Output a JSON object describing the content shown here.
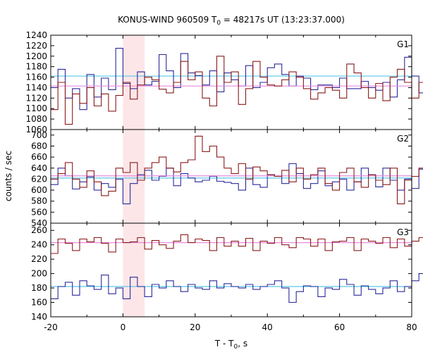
{
  "chart_data": {
    "type": "line",
    "title": "KONUS-WIND 960509 T",
    "title_sub": "0",
    "title_rest": " = 48217s UT (13:23:37.000)",
    "xlabel": "T - T",
    "xlabel_sub": "0",
    "xlabel_rest": ", s",
    "ylabel": "counts / sec",
    "xlim": [
      -20,
      80
    ],
    "xticks": [
      -20,
      0,
      20,
      40,
      60,
      80
    ],
    "highlight_interval": [
      0,
      6
    ],
    "bin_width": 2,
    "panels": [
      {
        "name": "G1",
        "ylim": [
          1060,
          1240
        ],
        "yticks": [
          1060,
          1080,
          1100,
          1120,
          1140,
          1160,
          1180,
          1200,
          1220,
          1240
        ],
        "series": [
          {
            "color": "#2a2a9a",
            "background_level": 1162,
            "background_color": "#5bc8e8",
            "values": [
              1140,
              1175,
              1120,
              1138,
              1098,
              1165,
              1122,
              1158,
              1136,
              1215,
              1148,
              1138,
              1170,
              1145,
              1152,
              1203,
              1172,
              1140,
              1205,
              1168,
              1163,
              1145,
              1172,
              1132,
              1168,
              1155,
              1143,
              1182,
              1140,
              1150,
              1178,
              1185,
              1165,
              1143,
              1162,
              1158,
              1136,
              1145,
              1145,
              1140,
              1158,
              1138,
              1138,
              1152,
              1140,
              1135,
              1150,
              1122,
              1155,
              1198,
              1162,
              1130,
              1128,
              1150,
              1180,
              1120,
              1130,
              1210,
              1165,
              1135,
              1115,
              1150,
              1146,
              1150,
              1158,
              1150,
              1170,
              1170,
              1188,
              1208,
              1180,
              1172,
              1160,
              1140,
              1162,
              1175,
              1170,
              1163,
              1130,
              1158,
              1142,
              1136,
              1148,
              1105,
              1175,
              1108,
              1130,
              1165,
              1188,
              1145,
              1183,
              1208,
              1165,
              1160,
              1172,
              1168,
              1152,
              1165,
              1158,
              1178
            ]
          },
          {
            "color": "#8b1a1a",
            "background_level": 1143,
            "background_color": "#e88be0",
            "values": [
              1098,
              1150,
              1070,
              1128,
              1110,
              1140,
              1105,
              1128,
              1095,
              1125,
              1150,
              1118,
              1145,
              1160,
              1155,
              1137,
              1130,
              1150,
              1190,
              1155,
              1170,
              1120,
              1105,
              1200,
              1150,
              1170,
              1108,
              1138,
              1190,
              1160,
              1145,
              1143,
              1155,
              1170,
              1160,
              1138,
              1118,
              1130,
              1140,
              1135,
              1120,
              1185,
              1168,
              1140,
              1120,
              1148,
              1115,
              1160,
              1175,
              1150,
              1120,
              1150,
              1130,
              1170,
              1137,
              1130,
              1105,
              1185,
              1162,
              1150,
              1140,
              1123,
              1180,
              1140,
              1150,
              1175,
              1158,
              1143,
              1130,
              1100,
              1125,
              1190,
              1115,
              1160,
              1155,
              1140,
              1120,
              1143,
              1160,
              1180,
              1145,
              1140,
              1170,
              1160,
              1120,
              1100,
              1160,
              1150,
              1170,
              1140,
              1110,
              1145,
              1118,
              1160,
              1130,
              1100,
              1145,
              1150,
              1170,
              1165
            ]
          }
        ]
      },
      {
        "name": "G2",
        "ylim": [
          540,
          710
        ],
        "yticks": [
          540,
          560,
          580,
          600,
          620,
          640,
          660,
          680,
          700
        ],
        "series": [
          {
            "color": "#2a2a9a",
            "background_level": 622,
            "background_color": "#5bc8e8",
            "values": [
              610,
              640,
              626,
              602,
              615,
              624,
              600,
              612,
              605,
              620,
              575,
              612,
              628,
              636,
              618,
              625,
              640,
              608,
              630,
              622,
              615,
              618,
              625,
              616,
              614,
              612,
              600,
              640,
              610,
              605,
              628,
              625,
              612,
              648,
              630,
              603,
              612,
              635,
              608,
              615,
              620,
              600,
              615,
              640,
              628,
              606,
              640,
              618,
              600,
              620,
              603,
              638,
              628,
              615,
              607,
              637,
              618,
              629,
              640,
              605,
              612,
              650,
              625,
              608,
              612,
              620,
              640,
              610,
              618,
              605,
              600,
              605,
              650,
              610,
              628,
              612,
              655,
              600,
              612,
              620,
              625,
              607,
              612,
              600,
              598,
              615,
              640,
              620,
              612,
              605,
              618,
              630,
              612,
              610,
              615,
              605,
              624,
              611,
              620,
              630
            ]
          },
          {
            "color": "#8b1a1a",
            "background_level": 626,
            "background_color": "#e88be0",
            "values": [
              620,
              630,
              650,
              620,
              605,
              635,
              615,
              590,
              598,
              640,
              632,
              650,
              618,
              640,
              650,
              660,
              640,
              633,
              650,
              655,
              698,
              670,
              680,
              660,
              640,
              630,
              648,
              620,
              642,
              635,
              628,
              625,
              636,
              615,
              640,
              620,
              628,
              640,
              612,
              600,
              632,
              640,
              615,
              605,
              628,
              618,
              610,
              640,
              575,
              618,
              625,
              640,
              660,
              608,
              620,
              635,
              595,
              630,
              618,
              640,
              628,
              602,
              640,
              618,
              622,
              640,
              608,
              630,
              618,
              640,
              612,
              598,
              630,
              645,
              622,
              618,
              638,
              630,
              625,
              612,
              640,
              628,
              600,
              630,
              650,
              612,
              640,
              618,
              650,
              608,
              632,
              622,
              605,
              625,
              640,
              628,
              618,
              605,
              620,
              625
            ]
          }
        ]
      },
      {
        "name": "G3",
        "ylim": [
          140,
          270
        ],
        "yticks": [
          140,
          160,
          180,
          200,
          220,
          240,
          260
        ],
        "series": [
          {
            "color": "#2a2a9a",
            "background_level": 182,
            "background_color": "#5bc8e8",
            "values": [
              165,
              182,
              188,
              170,
              190,
              183,
              178,
              198,
              172,
              180,
              165,
              195,
              182,
              168,
              185,
              180,
              190,
              182,
              175,
              185,
              180,
              178,
              190,
              180,
              186,
              182,
              180,
              185,
              178,
              182,
              185,
              190,
              180,
              160,
              175,
              183,
              182,
              168,
              180,
              178,
              192,
              185,
              170,
              183,
              178,
              172,
              180,
              190,
              175,
              182,
              190,
              200,
              176,
              182,
              185,
              170,
              178,
              187,
              180,
              192,
              175,
              183,
              180,
              170,
              178,
              185,
              190,
              185,
              180,
              185,
              175,
              182,
              190,
              178,
              183,
              185,
              170,
              188,
              180,
              178,
              182,
              175,
              185,
              190,
              180,
              176,
              170,
              182,
              185,
              180,
              175,
              170,
              188,
              182,
              180,
              178,
              190,
              185,
              175,
              180
            ]
          },
          {
            "color": "#8b1a1a",
            "background_level": 243,
            "background_color": "#e88be0",
            "values": [
              228,
              248,
              242,
              232,
              248,
              244,
              250,
              242,
              230,
              248,
              243,
              244,
              250,
              234,
              246,
              240,
              235,
              245,
              254,
              243,
              248,
              246,
              232,
              250,
              238,
              245,
              238,
              249,
              232,
              245,
              242,
              250,
              240,
              236,
              250,
              248,
              238,
              248,
              232,
              244,
              245,
              250,
              232,
              248,
              245,
              242,
              250,
              236,
              248,
              238,
              245,
              250,
              242,
              230,
              248,
              244,
              238,
              250,
              240,
              255,
              238,
              230,
              248,
              243,
              245,
              250,
              235,
              246,
              242,
              260,
              240,
              230,
              252,
              240,
              245,
              250,
              235,
              246,
              242,
              250,
              240,
              238,
              252,
              244,
              245,
              260,
              236,
              250,
              242,
              246,
              240,
              252,
              230,
              248,
              242,
              244,
              250,
              236,
              245,
              264
            ]
          }
        ]
      }
    ]
  }
}
